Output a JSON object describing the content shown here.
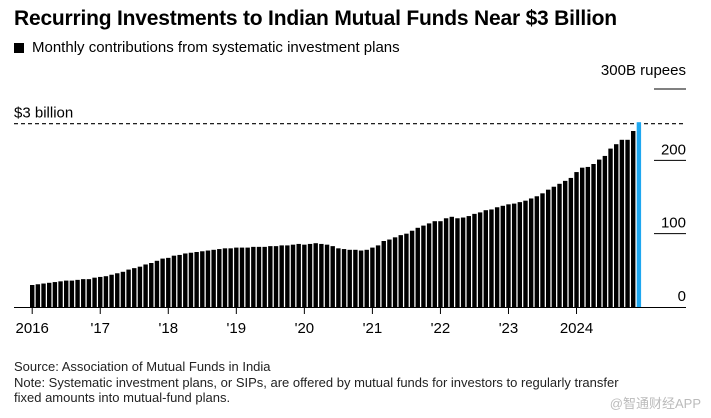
{
  "title": "Recurring Investments to Indian Mutual Funds Near $3 Billion",
  "legend_label": "Monthly contributions from systematic investment plans",
  "chart_data": {
    "type": "bar",
    "title": "Recurring Investments to Indian Mutual Funds Near $3 Billion",
    "ylabel": "300B rupees",
    "ylim": [
      0,
      300
    ],
    "yticks": [
      0,
      100,
      200
    ],
    "ytick_labels": [
      "0",
      "100",
      "200"
    ],
    "y_unit_label": "300B rupees",
    "x_tick_labels": [
      "2016",
      "'17",
      "'18",
      "'19",
      "'20",
      "'21",
      "'22",
      "'23",
      "2024"
    ],
    "start_period": "2016-01",
    "interval": "monthly",
    "reference_line": {
      "value": 250,
      "label": "$3 billion"
    },
    "highlight_color": "#1ea7f0",
    "bar_color": "#000000",
    "values": [
      30,
      31,
      32,
      33,
      34,
      35,
      36,
      36,
      37,
      38,
      38,
      40,
      41,
      42,
      44,
      46,
      48,
      51,
      53,
      55,
      58,
      60,
      63,
      66,
      67,
      70,
      71,
      73,
      74,
      75,
      76,
      77,
      78,
      79,
      80,
      80,
      81,
      81,
      81,
      82,
      82,
      82,
      83,
      83,
      84,
      84,
      85,
      86,
      85,
      86,
      87,
      86,
      85,
      83,
      80,
      79,
      78,
      78,
      77,
      78,
      81,
      84,
      90,
      92,
      95,
      98,
      100,
      104,
      108,
      111,
      114,
      117,
      117,
      121,
      123,
      121,
      122,
      124,
      127,
      129,
      132,
      133,
      136,
      138,
      140,
      141,
      143,
      145,
      148,
      151,
      155,
      160,
      164,
      168,
      172,
      176,
      184,
      190,
      191,
      195,
      201,
      206,
      216,
      222,
      228,
      228,
      240,
      252
    ]
  },
  "footer": {
    "source": "Source: Association of Mutual Funds in India",
    "note": "Note: Systematic investment plans, or SIPs, are offered by mutual funds for investors to regularly transfer\nfixed amounts into mutual-fund plans."
  },
  "watermark": "@智通财经APP"
}
